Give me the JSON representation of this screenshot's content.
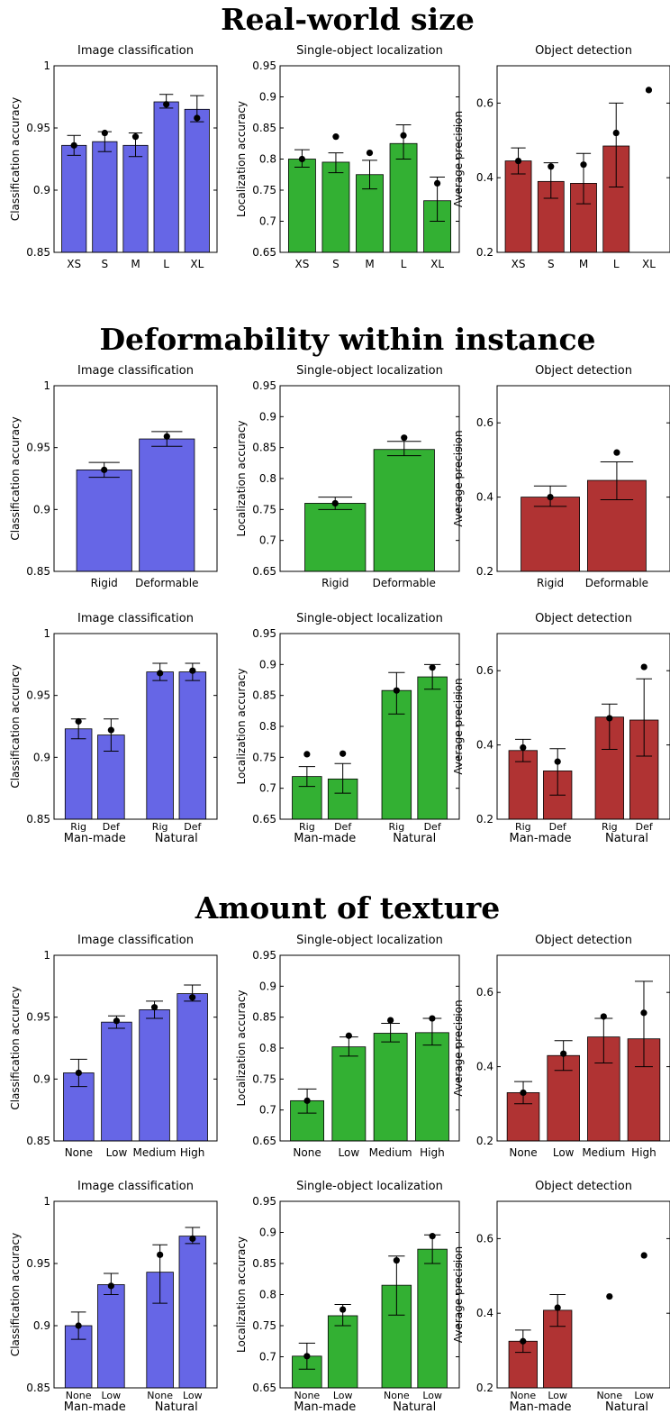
{
  "sections": [
    {
      "title": "Real-world size"
    },
    {
      "title": "Deformability within instance"
    },
    {
      "title": "Amount of texture"
    }
  ],
  "colors": {
    "classification": "#6666e6",
    "localization": "#33b033",
    "detection": "#b03333"
  },
  "chart_data": [
    {
      "type": "bar",
      "task": "classification",
      "section": 0,
      "title": "Image classification",
      "ylabel": "Classification accuracy",
      "ylim": [
        0.85,
        1
      ],
      "yticks": [
        0.85,
        0.9,
        0.95,
        1
      ],
      "ytick_labels": [
        "0.85",
        "0.9",
        "0.95",
        "1"
      ],
      "categories": [
        "XS",
        "S",
        "M",
        "L",
        "XL"
      ],
      "values": [
        0.936,
        0.939,
        0.936,
        0.971,
        0.965
      ],
      "err_low": [
        0.928,
        0.931,
        0.927,
        0.966,
        0.955
      ],
      "err_high": [
        0.944,
        0.947,
        0.946,
        0.977,
        0.976
      ],
      "dots": [
        0.936,
        0.946,
        0.943,
        0.969,
        0.958
      ]
    },
    {
      "type": "bar",
      "task": "localization",
      "section": 0,
      "title": "Single-object localization",
      "ylabel": "Localization accuracy",
      "ylim": [
        0.65,
        0.95
      ],
      "yticks": [
        0.65,
        0.7,
        0.75,
        0.8,
        0.85,
        0.9,
        0.95
      ],
      "ytick_labels": [
        "0.65",
        "0.7",
        "0.75",
        "0.8",
        "0.85",
        "0.9",
        "0.95"
      ],
      "categories": [
        "XS",
        "S",
        "M",
        "L",
        "XL"
      ],
      "values": [
        0.8,
        0.795,
        0.775,
        0.825,
        0.733
      ],
      "err_low": [
        0.787,
        0.778,
        0.752,
        0.8,
        0.7
      ],
      "err_high": [
        0.815,
        0.81,
        0.798,
        0.855,
        0.771
      ],
      "dots": [
        0.8,
        0.836,
        0.81,
        0.838,
        0.761
      ]
    },
    {
      "type": "bar",
      "task": "detection",
      "section": 0,
      "title": "Object detection",
      "ylabel": "Average precision",
      "ylim": [
        0.2,
        0.7
      ],
      "yticks": [
        0.2,
        0.4,
        0.6
      ],
      "ytick_labels": [
        "0.2",
        "0.4",
        "0.6"
      ],
      "categories": [
        "XS",
        "S",
        "M",
        "L",
        "XL"
      ],
      "values": [
        0.445,
        0.39,
        0.385,
        0.485,
        null
      ],
      "err_low": [
        0.41,
        0.345,
        0.33,
        0.375,
        null
      ],
      "err_high": [
        0.48,
        0.44,
        0.465,
        0.6,
        null
      ],
      "dots": [
        0.445,
        0.43,
        0.435,
        0.52,
        0.635
      ]
    },
    {
      "type": "bar",
      "task": "classification",
      "section": 1,
      "title": "Image classification",
      "ylabel": "Classification accuracy",
      "ylim": [
        0.85,
        1
      ],
      "yticks": [
        0.85,
        0.9,
        0.95,
        1
      ],
      "ytick_labels": [
        "0.85",
        "0.9",
        "0.95",
        "1"
      ],
      "categories": [
        "Rigid",
        "Deformable"
      ],
      "values": [
        0.932,
        0.957
      ],
      "err_low": [
        0.926,
        0.951
      ],
      "err_high": [
        0.938,
        0.963
      ],
      "dots": [
        0.932,
        0.959
      ]
    },
    {
      "type": "bar",
      "task": "localization",
      "section": 1,
      "title": "Single-object localization",
      "ylabel": "Localization accuracy",
      "ylim": [
        0.65,
        0.95
      ],
      "yticks": [
        0.65,
        0.7,
        0.75,
        0.8,
        0.85,
        0.9,
        0.95
      ],
      "ytick_labels": [
        "0.65",
        "0.7",
        "0.75",
        "0.8",
        "0.85",
        "0.9",
        "0.95"
      ],
      "categories": [
        "Rigid",
        "Deformable"
      ],
      "values": [
        0.76,
        0.847
      ],
      "err_low": [
        0.75,
        0.837
      ],
      "err_high": [
        0.77,
        0.86
      ],
      "dots": [
        0.76,
        0.866
      ]
    },
    {
      "type": "bar",
      "task": "detection",
      "section": 1,
      "title": "Object detection",
      "ylabel": "Average precision",
      "ylim": [
        0.2,
        0.7
      ],
      "yticks": [
        0.2,
        0.4,
        0.6
      ],
      "ytick_labels": [
        "0.2",
        "0.4",
        "0.6"
      ],
      "categories": [
        "Rigid",
        "Deformable"
      ],
      "values": [
        0.4,
        0.445
      ],
      "err_low": [
        0.375,
        0.393
      ],
      "err_high": [
        0.43,
        0.495
      ],
      "dots": [
        0.4,
        0.52
      ]
    },
    {
      "type": "bar",
      "task": "classification",
      "section": 1,
      "title": "Image classification",
      "ylabel": "Classification accuracy",
      "ylim": [
        0.85,
        1
      ],
      "yticks": [
        0.85,
        0.9,
        0.95,
        1
      ],
      "ytick_labels": [
        "0.85",
        "0.9",
        "0.95",
        "1"
      ],
      "categories": [
        "Rig",
        "Def",
        "Rig",
        "Def"
      ],
      "groups": [
        "Man-made",
        "Natural"
      ],
      "values": [
        0.923,
        0.918,
        0.969,
        0.969
      ],
      "err_low": [
        0.915,
        0.905,
        0.962,
        0.962
      ],
      "err_high": [
        0.931,
        0.931,
        0.976,
        0.976
      ],
      "dots": [
        0.929,
        0.922,
        0.968,
        0.97
      ]
    },
    {
      "type": "bar",
      "task": "localization",
      "section": 1,
      "title": "Single-object localization",
      "ylabel": "Localization accuracy",
      "ylim": [
        0.65,
        0.95
      ],
      "yticks": [
        0.65,
        0.7,
        0.75,
        0.8,
        0.85,
        0.9,
        0.95
      ],
      "ytick_labels": [
        "0.65",
        "0.7",
        "0.75",
        "0.8",
        "0.85",
        "0.9",
        "0.95"
      ],
      "categories": [
        "Rig",
        "Def",
        "Rig",
        "Def"
      ],
      "groups": [
        "Man-made",
        "Natural"
      ],
      "values": [
        0.719,
        0.715,
        0.858,
        0.88
      ],
      "err_low": [
        0.703,
        0.692,
        0.82,
        0.86
      ],
      "err_high": [
        0.735,
        0.74,
        0.887,
        0.9
      ],
      "dots": [
        0.755,
        0.756,
        0.858,
        0.895
      ]
    },
    {
      "type": "bar",
      "task": "detection",
      "section": 1,
      "title": "Object detection",
      "ylabel": "Average precision",
      "ylim": [
        0.2,
        0.7
      ],
      "yticks": [
        0.2,
        0.4,
        0.6
      ],
      "ytick_labels": [
        "0.2",
        "0.4",
        "0.6"
      ],
      "categories": [
        "Rig",
        "Def",
        "Rig",
        "Def"
      ],
      "groups": [
        "Man-made",
        "Natural"
      ],
      "values": [
        0.385,
        0.33,
        0.475,
        0.467
      ],
      "err_low": [
        0.355,
        0.265,
        0.388,
        0.37
      ],
      "err_high": [
        0.415,
        0.39,
        0.51,
        0.578
      ],
      "dots": [
        0.393,
        0.355,
        0.472,
        0.61
      ]
    },
    {
      "type": "bar",
      "task": "classification",
      "section": 2,
      "title": "Image classification",
      "ylabel": "Classification accuracy",
      "ylim": [
        0.85,
        1
      ],
      "yticks": [
        0.85,
        0.9,
        0.95,
        1
      ],
      "ytick_labels": [
        "0.85",
        "0.9",
        "0.95",
        "1"
      ],
      "categories": [
        "None",
        "Low",
        "Medium",
        "High"
      ],
      "values": [
        0.905,
        0.946,
        0.956,
        0.969
      ],
      "err_low": [
        0.894,
        0.941,
        0.949,
        0.963
      ],
      "err_high": [
        0.916,
        0.951,
        0.963,
        0.976
      ],
      "dots": [
        0.905,
        0.947,
        0.958,
        0.966
      ]
    },
    {
      "type": "bar",
      "task": "localization",
      "section": 2,
      "title": "Single-object localization",
      "ylabel": "Localization accuracy",
      "ylim": [
        0.65,
        0.95
      ],
      "yticks": [
        0.65,
        0.7,
        0.75,
        0.8,
        0.85,
        0.9,
        0.95
      ],
      "ytick_labels": [
        "0.65",
        "0.7",
        "0.75",
        "0.8",
        "0.85",
        "0.9",
        "0.95"
      ],
      "categories": [
        "None",
        "Low",
        "Medium",
        "High"
      ],
      "values": [
        0.715,
        0.802,
        0.824,
        0.825
      ],
      "err_low": [
        0.695,
        0.787,
        0.81,
        0.805
      ],
      "err_high": [
        0.734,
        0.818,
        0.84,
        0.848
      ],
      "dots": [
        0.715,
        0.82,
        0.845,
        0.848
      ]
    },
    {
      "type": "bar",
      "task": "detection",
      "section": 2,
      "title": "Object detection",
      "ylabel": "Average precision",
      "ylim": [
        0.2,
        0.7
      ],
      "yticks": [
        0.2,
        0.4,
        0.6
      ],
      "ytick_labels": [
        "0.2",
        "0.4",
        "0.6"
      ],
      "categories": [
        "None",
        "Low",
        "Medium",
        "High"
      ],
      "values": [
        0.33,
        0.43,
        0.48,
        0.475
      ],
      "err_low": [
        0.3,
        0.39,
        0.41,
        0.4
      ],
      "err_high": [
        0.36,
        0.47,
        0.53,
        0.63
      ],
      "dots": [
        0.33,
        0.435,
        0.535,
        0.545
      ]
    },
    {
      "type": "bar",
      "task": "classification",
      "section": 2,
      "title": "Image classification",
      "ylabel": "Classification accuracy",
      "ylim": [
        0.85,
        1
      ],
      "yticks": [
        0.85,
        0.9,
        0.95,
        1
      ],
      "ytick_labels": [
        "0.85",
        "0.9",
        "0.95",
        "1"
      ],
      "categories": [
        "None",
        "Low",
        "None",
        "Low"
      ],
      "groups": [
        "Man-made",
        "Natural"
      ],
      "values": [
        0.9,
        0.933,
        0.943,
        0.972
      ],
      "err_low": [
        0.889,
        0.925,
        0.918,
        0.966
      ],
      "err_high": [
        0.911,
        0.942,
        0.965,
        0.979
      ],
      "dots": [
        0.9,
        0.932,
        0.957,
        0.97
      ]
    },
    {
      "type": "bar",
      "task": "localization",
      "section": 2,
      "title": "Single-object localization",
      "ylabel": "Localization accuracy",
      "ylim": [
        0.65,
        0.95
      ],
      "yticks": [
        0.65,
        0.7,
        0.75,
        0.8,
        0.85,
        0.9,
        0.95
      ],
      "ytick_labels": [
        "0.65",
        "0.7",
        "0.75",
        "0.8",
        "0.85",
        "0.9",
        "0.95"
      ],
      "categories": [
        "None",
        "Low",
        "None",
        "Low"
      ],
      "groups": [
        "Man-made",
        "Natural"
      ],
      "values": [
        0.701,
        0.766,
        0.815,
        0.873
      ],
      "err_low": [
        0.68,
        0.75,
        0.767,
        0.85
      ],
      "err_high": [
        0.722,
        0.784,
        0.862,
        0.896
      ],
      "dots": [
        0.701,
        0.776,
        0.855,
        0.894
      ]
    },
    {
      "type": "bar",
      "task": "detection",
      "section": 2,
      "title": "Object detection",
      "ylabel": "Average precision",
      "ylim": [
        0.2,
        0.7
      ],
      "yticks": [
        0.2,
        0.4,
        0.6
      ],
      "ytick_labels": [
        "0.2",
        "0.4",
        "0.6"
      ],
      "categories": [
        "None",
        "Low",
        "None",
        "Low"
      ],
      "groups": [
        "Man-made",
        "Natural"
      ],
      "values": [
        0.325,
        0.408,
        null,
        null
      ],
      "err_low": [
        0.295,
        0.365,
        null,
        null
      ],
      "err_high": [
        0.355,
        0.45,
        null,
        null
      ],
      "dots": [
        0.325,
        0.415,
        0.445,
        0.555
      ]
    }
  ]
}
